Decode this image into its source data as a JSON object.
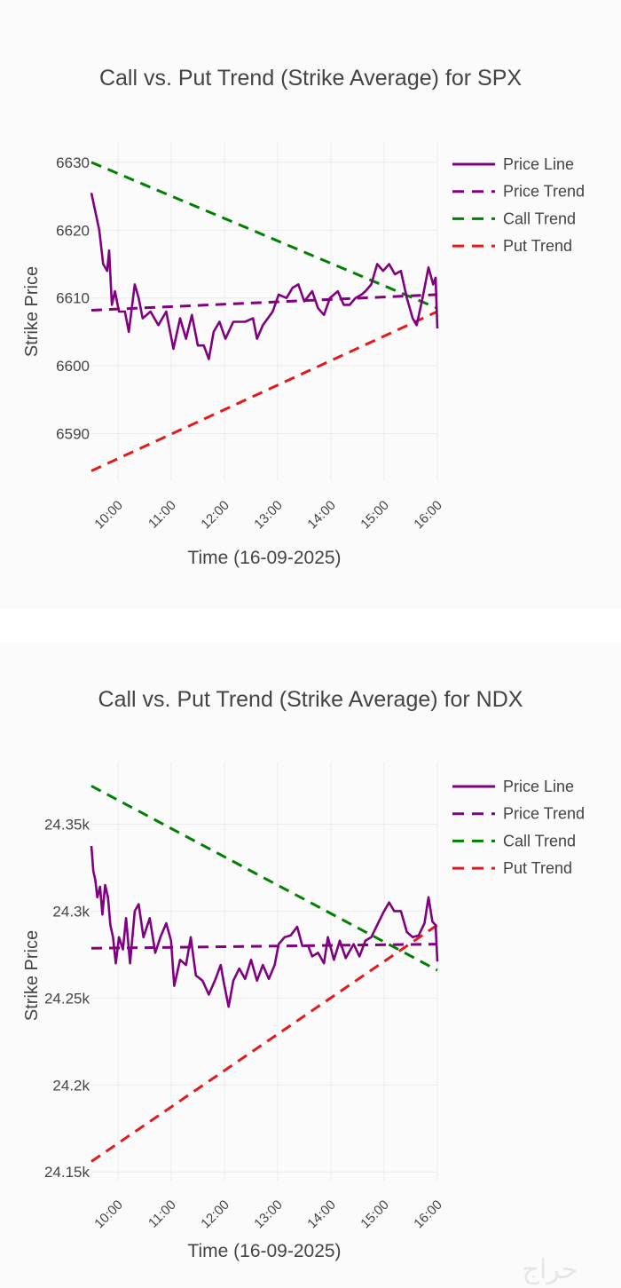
{
  "watermark": "حراج",
  "chart_data": [
    {
      "type": "line",
      "title": "Call vs. Put Trend (Strike Average) for SPX",
      "xlabel": "Time (16-09-2025)",
      "ylabel": "Strike Price",
      "x_unit": "hour of day",
      "xlim": [
        9.5,
        16.0
      ],
      "ylim": [
        6583,
        6633
      ],
      "xticks": [
        {
          "v": 10,
          "label": "10:00"
        },
        {
          "v": 11,
          "label": "11:00"
        },
        {
          "v": 12,
          "label": "12:00"
        },
        {
          "v": 13,
          "label": "13:00"
        },
        {
          "v": 14,
          "label": "14:00"
        },
        {
          "v": 15,
          "label": "15:00"
        },
        {
          "v": 16,
          "label": "16:00"
        }
      ],
      "yticks": [
        {
          "v": 6590,
          "label": "6590"
        },
        {
          "v": 6600,
          "label": "6600"
        },
        {
          "v": 6610,
          "label": "6610"
        },
        {
          "v": 6620,
          "label": "6620"
        },
        {
          "v": 6630,
          "label": "6630"
        }
      ],
      "grid": true,
      "legend_position": "top-right",
      "series": [
        {
          "name": "Price Line",
          "color": "#800080",
          "dash": false,
          "points": [
            [
              9.5,
              6625.5
            ],
            [
              9.648,
              6620
            ],
            [
              9.722,
              6615
            ],
            [
              9.796,
              6614
            ],
            [
              9.833,
              6617
            ],
            [
              9.885,
              6609
            ],
            [
              9.944,
              6611
            ],
            [
              10.019,
              6608
            ],
            [
              10.13,
              6608
            ],
            [
              10.204,
              6605
            ],
            [
              10.315,
              6612
            ],
            [
              10.389,
              6610
            ],
            [
              10.463,
              6607
            ],
            [
              10.611,
              6608
            ],
            [
              10.759,
              6606
            ],
            [
              10.907,
              6608
            ],
            [
              11.041,
              6602.5
            ],
            [
              11.167,
              6607
            ],
            [
              11.278,
              6604
            ],
            [
              11.389,
              6607.5
            ],
            [
              11.5,
              6603
            ],
            [
              11.611,
              6603
            ],
            [
              11.707,
              6601
            ],
            [
              11.796,
              6605
            ],
            [
              11.907,
              6606.5
            ],
            [
              12.019,
              6604
            ],
            [
              12.167,
              6606.5
            ],
            [
              12.389,
              6606.5
            ],
            [
              12.537,
              6607
            ],
            [
              12.611,
              6604
            ],
            [
              12.722,
              6606
            ],
            [
              12.907,
              6608
            ],
            [
              13.019,
              6610.5
            ],
            [
              13.167,
              6610
            ],
            [
              13.278,
              6611.5
            ],
            [
              13.389,
              6612
            ],
            [
              13.5,
              6609.5
            ],
            [
              13.648,
              6611
            ],
            [
              13.759,
              6608.5
            ],
            [
              13.87,
              6607.5
            ],
            [
              13.981,
              6610
            ],
            [
              14.13,
              6611
            ],
            [
              14.241,
              6609
            ],
            [
              14.352,
              6609
            ],
            [
              14.463,
              6610
            ],
            [
              14.574,
              6610.5
            ],
            [
              14.648,
              6611
            ],
            [
              14.759,
              6612
            ],
            [
              14.87,
              6615
            ],
            [
              14.981,
              6614
            ],
            [
              15.093,
              6615
            ],
            [
              15.204,
              6613.5
            ],
            [
              15.315,
              6614
            ],
            [
              15.426,
              6610
            ],
            [
              15.537,
              6607
            ],
            [
              15.611,
              6606
            ],
            [
              15.722,
              6610
            ],
            [
              15.833,
              6614.5
            ],
            [
              15.922,
              6612
            ],
            [
              15.967,
              6613
            ],
            [
              16.0,
              6605.5
            ]
          ]
        },
        {
          "name": "Price Trend",
          "color": "#800080",
          "dash": true,
          "points": [
            [
              9.5,
              6608.2
            ],
            [
              16.0,
              6610.5
            ]
          ]
        },
        {
          "name": "Call Trend",
          "color": "#008000",
          "dash": true,
          "points": [
            [
              9.5,
              6630
            ],
            [
              16.0,
              6608.5
            ]
          ]
        },
        {
          "name": "Put Trend",
          "color": "#e31a1c",
          "dash": true,
          "points": [
            [
              9.5,
              6584.5
            ],
            [
              16.0,
              6608
            ]
          ]
        }
      ]
    },
    {
      "type": "line",
      "title": "Call vs. Put Trend (Strike Average) for NDX",
      "xlabel": "Time (16-09-2025)",
      "ylabel": "Strike Price",
      "x_unit": "hour of day",
      "xlim": [
        9.5,
        16.0
      ],
      "ylim": [
        24145,
        24386
      ],
      "xticks": [
        {
          "v": 10,
          "label": "10:00"
        },
        {
          "v": 11,
          "label": "11:00"
        },
        {
          "v": 12,
          "label": "12:00"
        },
        {
          "v": 13,
          "label": "13:00"
        },
        {
          "v": 14,
          "label": "14:00"
        },
        {
          "v": 15,
          "label": "15:00"
        },
        {
          "v": 16,
          "label": "16:00"
        }
      ],
      "yticks": [
        {
          "v": 24150,
          "label": "24.15k"
        },
        {
          "v": 24200,
          "label": "24.2k"
        },
        {
          "v": 24250,
          "label": "24.25k"
        },
        {
          "v": 24300,
          "label": "24.3k"
        },
        {
          "v": 24350,
          "label": "24.35k"
        }
      ],
      "grid": true,
      "legend_position": "top-right",
      "series": [
        {
          "name": "Price Line",
          "color": "#800080",
          "dash": false,
          "points": [
            [
              9.5,
              24337.5
            ],
            [
              9.537,
              24323
            ],
            [
              9.574,
              24318
            ],
            [
              9.611,
              24308
            ],
            [
              9.663,
              24314
            ],
            [
              9.707,
              24298
            ],
            [
              9.759,
              24315
            ],
            [
              9.811,
              24308
            ],
            [
              9.856,
              24292
            ],
            [
              9.907,
              24285
            ],
            [
              9.959,
              24270
            ],
            [
              10.019,
              24285
            ],
            [
              10.093,
              24278
            ],
            [
              10.152,
              24296
            ],
            [
              10.226,
              24270
            ],
            [
              10.315,
              24300
            ],
            [
              10.389,
              24304
            ],
            [
              10.478,
              24285
            ],
            [
              10.596,
              24296
            ],
            [
              10.7,
              24276
            ],
            [
              10.796,
              24285
            ],
            [
              10.907,
              24293
            ],
            [
              10.996,
              24283
            ],
            [
              11.056,
              24257
            ],
            [
              11.167,
              24272
            ],
            [
              11.278,
              24269
            ],
            [
              11.367,
              24285
            ],
            [
              11.463,
              24263
            ],
            [
              11.589,
              24260
            ],
            [
              11.707,
              24252
            ],
            [
              11.833,
              24261
            ],
            [
              11.93,
              24269
            ],
            [
              11.981,
              24260
            ],
            [
              12.078,
              24245
            ],
            [
              12.167,
              24260
            ],
            [
              12.278,
              24267
            ],
            [
              12.389,
              24261
            ],
            [
              12.5,
              24272
            ],
            [
              12.611,
              24260
            ],
            [
              12.722,
              24269
            ],
            [
              12.833,
              24261
            ],
            [
              12.944,
              24269
            ],
            [
              13.019,
              24281
            ],
            [
              13.13,
              24285
            ],
            [
              13.241,
              24286
            ],
            [
              13.367,
              24291
            ],
            [
              13.463,
              24280
            ],
            [
              13.574,
              24280
            ],
            [
              13.648,
              24274
            ],
            [
              13.759,
              24276
            ],
            [
              13.87,
              24270
            ],
            [
              13.944,
              24285
            ],
            [
              14.056,
              24272
            ],
            [
              14.167,
              24283
            ],
            [
              14.278,
              24273
            ],
            [
              14.426,
              24281
            ],
            [
              14.537,
              24274
            ],
            [
              14.648,
              24283
            ],
            [
              14.759,
              24285
            ],
            [
              14.87,
              24292
            ],
            [
              14.981,
              24299
            ],
            [
              15.093,
              24305
            ],
            [
              15.189,
              24300
            ],
            [
              15.315,
              24300
            ],
            [
              15.426,
              24288
            ],
            [
              15.537,
              24285
            ],
            [
              15.648,
              24286
            ],
            [
              15.759,
              24293
            ],
            [
              15.833,
              24308
            ],
            [
              15.907,
              24294
            ],
            [
              15.967,
              24292
            ],
            [
              16.0,
              24271
            ]
          ]
        },
        {
          "name": "Price Trend",
          "color": "#800080",
          "dash": true,
          "points": [
            [
              9.5,
              24278.6
            ],
            [
              16.0,
              24281
            ]
          ]
        },
        {
          "name": "Call Trend",
          "color": "#008000",
          "dash": true,
          "points": [
            [
              9.5,
              24372
            ],
            [
              16.0,
              24266
            ]
          ]
        },
        {
          "name": "Put Trend",
          "color": "#e31a1c",
          "dash": true,
          "points": [
            [
              9.5,
              24156
            ],
            [
              16.0,
              24292
            ]
          ]
        }
      ]
    }
  ]
}
